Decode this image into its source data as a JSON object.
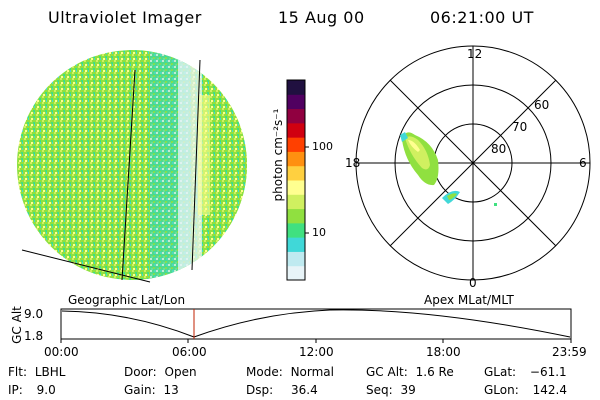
{
  "header": {
    "instrument": "Ultraviolet Imager",
    "date": "15 Aug 00",
    "time": "06:21:00 UT"
  },
  "colorbar": {
    "unit_label": "photon cm⁻²s⁻¹",
    "ticks": [
      "100",
      "10"
    ],
    "scale": "log",
    "colors": [
      "#e8f4f8",
      "#bfeaf0",
      "#40d8d8",
      "#40e080",
      "#90e040",
      "#d0f060",
      "#ffff90",
      "#ffd040",
      "#ff9010",
      "#ff4000",
      "#d00010",
      "#900040",
      "#500060",
      "#201040"
    ]
  },
  "polar_plot": {
    "mlt_labels": {
      "top": "12",
      "left": "18",
      "right": "6",
      "bottom": "0"
    },
    "lat_labels": [
      "60",
      "70",
      "80"
    ]
  },
  "timeline": {
    "left_label": "Geographic Lat/Lon",
    "right_label": "Apex MLat/MLT",
    "ylabel": "GC Alt",
    "y_ticks": [
      "9.0",
      "1.8"
    ],
    "x_ticks": [
      "00:00",
      "06:00",
      "12:00",
      "18:00",
      "23:59"
    ],
    "marker_color": "#c02000"
  },
  "status": {
    "flt": {
      "label": "Flt:",
      "value": "LBHL"
    },
    "ip": {
      "label": "IP:",
      "value": "9.0"
    },
    "door": {
      "label": "Door:",
      "value": "Open"
    },
    "gain": {
      "label": "Gain:",
      "value": "13"
    },
    "mode": {
      "label": "Mode:",
      "value": "Normal"
    },
    "dsp": {
      "label": "Dsp:",
      "value": "36.4"
    },
    "gcalt": {
      "label": "GC Alt:",
      "value": "1.6 Re"
    },
    "seq": {
      "label": "Seq:",
      "value": "39"
    },
    "glat": {
      "label": "GLat:",
      "value": "−61.1"
    },
    "glon": {
      "label": "GLon:",
      "value": "142.4"
    }
  }
}
